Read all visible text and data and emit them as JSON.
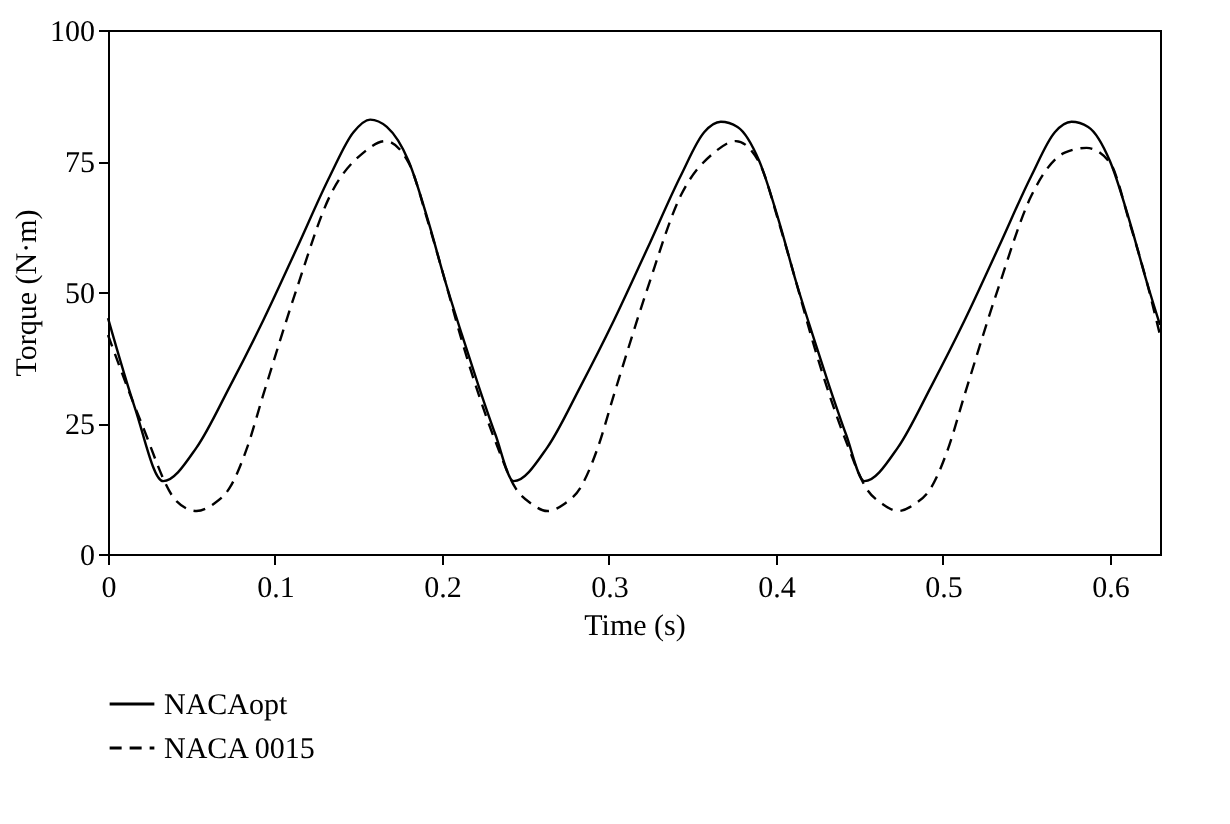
{
  "chart_data": {
    "type": "line",
    "xlabel": "Time (s)",
    "ylabel": "Torque (N·m)",
    "xlim": [
      0,
      0.63
    ],
    "xticks": [
      0,
      0.1,
      0.2,
      0.3,
      0.4,
      0.5,
      0.6
    ],
    "ylim": [
      0,
      100
    ],
    "yticks": [
      0,
      25,
      50,
      75,
      100
    ],
    "grid": false,
    "legend": "bottom",
    "series": [
      {
        "name": "NACAopt",
        "color": "#000000",
        "line_style": "solid",
        "x": [
          0,
          0.016,
          0.033,
          0.053,
          0.073,
          0.093,
          0.113,
          0.133,
          0.147,
          0.157,
          0.167,
          0.18,
          0.192,
          0.202,
          0.212,
          0.222,
          0.232,
          0.243,
          0.263,
          0.283,
          0.303,
          0.323,
          0.343,
          0.357,
          0.367,
          0.377,
          0.39,
          0.402,
          0.412,
          0.422,
          0.432,
          0.442,
          0.453,
          0.473,
          0.493,
          0.513,
          0.533,
          0.553,
          0.567,
          0.577,
          0.587,
          0.6,
          0.612,
          0.622,
          0.63
        ],
        "values": [
          45,
          28,
          13.9,
          20.3,
          32,
          44.6,
          58.3,
          72.2,
          80.5,
          82.9,
          81.5,
          75,
          63.3,
          52,
          41.8,
          32,
          22.8,
          13.9,
          20.3,
          32,
          44.6,
          58.3,
          72.2,
          80.5,
          82.5,
          81.5,
          75,
          63.3,
          52,
          41.8,
          32,
          22.8,
          13.9,
          20.3,
          32,
          44.6,
          58.3,
          72.2,
          80.5,
          82.5,
          81.5,
          75,
          63.3,
          52,
          43.7
        ]
      },
      {
        "name": "NACA 0015",
        "color": "#000000",
        "line_style": "dashed",
        "x": [
          0,
          0.02,
          0.041,
          0.053,
          0.063,
          0.073,
          0.083,
          0.093,
          0.113,
          0.133,
          0.153,
          0.166,
          0.18,
          0.192,
          0.202,
          0.212,
          0.232,
          0.244,
          0.254,
          0.263,
          0.273,
          0.283,
          0.293,
          0.303,
          0.323,
          0.343,
          0.363,
          0.376,
          0.39,
          0.402,
          0.412,
          0.422,
          0.442,
          0.454,
          0.464,
          0.473,
          0.483,
          0.493,
          0.503,
          0.513,
          0.533,
          0.553,
          0.573,
          0.586,
          0.6,
          0.612,
          0.622,
          0.63
        ],
        "values": [
          41.8,
          25,
          10.1,
          8.2,
          9.5,
          12.7,
          20,
          30.4,
          50.6,
          68.4,
          76.6,
          78.8,
          74.7,
          63,
          52,
          40.6,
          21.5,
          12.6,
          9.5,
          8.2,
          9.5,
          12.7,
          20,
          30.4,
          50.6,
          68.4,
          76.6,
          78.8,
          74.7,
          63,
          52,
          40.6,
          21.5,
          12.6,
          9.5,
          8.2,
          9.5,
          12.7,
          20,
          30.4,
          50.6,
          68.4,
          76.6,
          77.5,
          74.7,
          63,
          52,
          41.8
        ]
      }
    ]
  }
}
